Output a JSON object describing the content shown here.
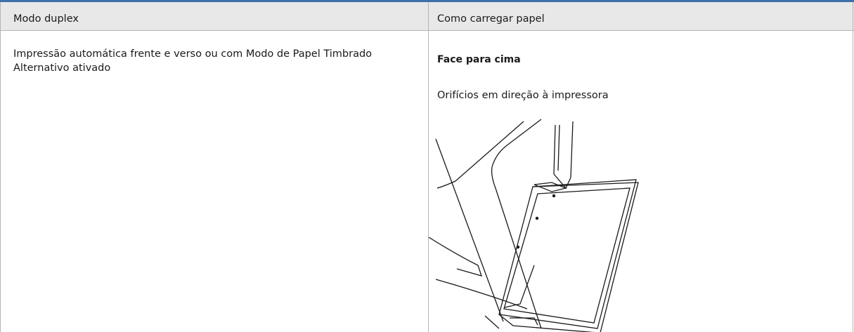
{
  "table": {
    "headers": [
      "Modo duplex",
      "Como carregar papel"
    ],
    "rows": [
      [
        "Impressão automática frente e verso ou com Modo de Papel Timbrado Alternativo ativado",
        {
          "heading": "Face para cima",
          "text": "Orifícios em direção à impressora"
        }
      ]
    ]
  }
}
